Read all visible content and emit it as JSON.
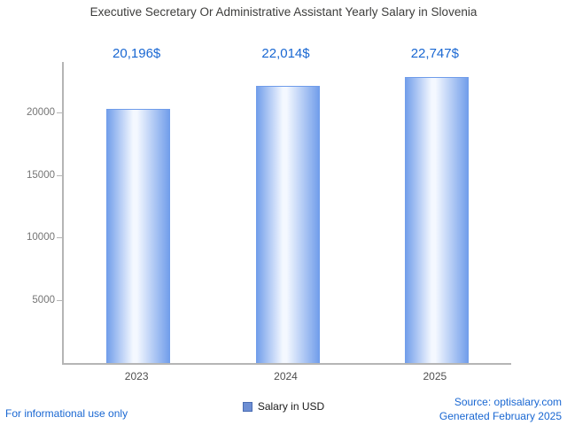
{
  "title": "Executive Secretary Or Administrative Assistant Yearly Salary in Slovenia",
  "legend": {
    "label": "Salary in USD",
    "swatch_icon": "blue-square-icon",
    "swatch_color": "#6d8ed3"
  },
  "footer": {
    "left": "For informational use only",
    "source": "Source: optisalary.com",
    "generated": "Generated February 2025"
  },
  "colors": {
    "value_label": "#1967d2",
    "footer_blue": "#1967d2",
    "bar_edge": "#6f9cea",
    "bar_center": "#f4f8ff",
    "axis": "#b5b5b5",
    "title": "#3d3d3c"
  },
  "chart_data": {
    "type": "bar",
    "categories": [
      "2023",
      "2024",
      "2025"
    ],
    "values": [
      20196,
      22014,
      22747
    ],
    "value_labels": [
      "20,196$",
      "22,014$",
      "22,747$"
    ],
    "series": [
      {
        "name": "Salary in USD",
        "values": [
          20196,
          22014,
          22747
        ]
      }
    ],
    "title": "Executive Secretary Or Administrative Assistant Yearly Salary in Slovenia",
    "xlabel": "",
    "ylabel": "",
    "ylim": [
      0,
      24000
    ],
    "yticks": [
      5000,
      10000,
      15000,
      20000
    ],
    "grid": false,
    "legend_position": "bottom"
  }
}
